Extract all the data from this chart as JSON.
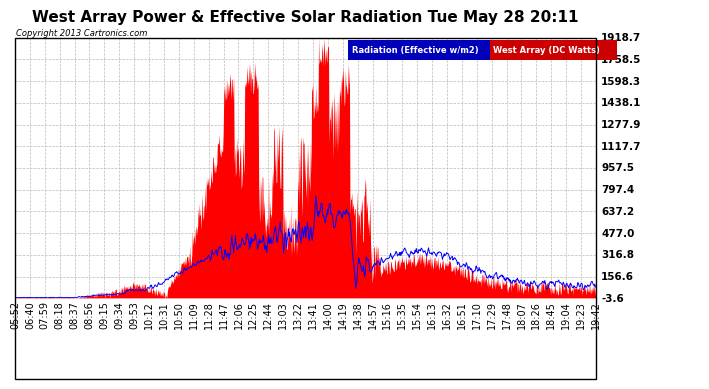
{
  "title": "West Array Power & Effective Solar Radiation Tue May 28 20:11",
  "copyright": "Copyright 2013 Cartronics.com",
  "legend_radiation": "Radiation (Effective w/m2)",
  "legend_west": "West Array (DC Watts)",
  "legend_radiation_bg": "#0000bb",
  "legend_west_bg": "#cc0000",
  "ytick_labels": [
    "1918.7",
    "1758.5",
    "1598.3",
    "1438.1",
    "1277.9",
    "1117.7",
    "957.5",
    "797.4",
    "637.2",
    "477.0",
    "316.8",
    "156.6",
    "-3.6"
  ],
  "ymin": -3.6,
  "ymax": 1918.7,
  "bg_color": "#ffffff",
  "plot_bg_color": "#ffffff",
  "grid_color": "#bbbbbb",
  "radiation_color": "#0000ff",
  "west_fill_color": "#ff0000",
  "title_fontsize": 11,
  "tick_fontsize": 7.5,
  "xtick_labels": [
    "05:52",
    "06:40",
    "07:59",
    "08:18",
    "08:37",
    "08:56",
    "09:15",
    "09:34",
    "09:53",
    "10:12",
    "10:31",
    "10:50",
    "11:09",
    "11:28",
    "11:47",
    "12:06",
    "12:25",
    "12:44",
    "13:03",
    "13:22",
    "13:41",
    "14:00",
    "14:19",
    "14:38",
    "14:57",
    "15:16",
    "15:35",
    "15:54",
    "16:13",
    "16:32",
    "16:51",
    "17:10",
    "17:29",
    "17:48",
    "18:07",
    "18:26",
    "18:45",
    "19:04",
    "19:23",
    "19:42"
  ]
}
